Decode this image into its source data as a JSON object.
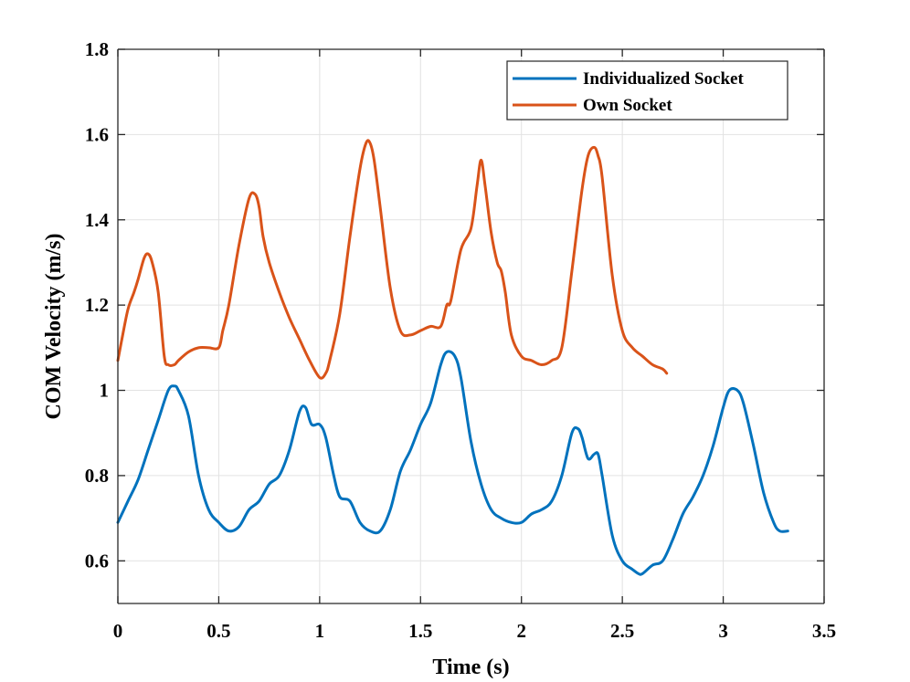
{
  "chart_data": {
    "type": "line",
    "title": "",
    "xlabel": "Time (s)",
    "ylabel": "COM Velocity (m/s)",
    "xlim": [
      0,
      3.5
    ],
    "ylim": [
      0.5,
      1.8
    ],
    "grid": true,
    "legend_position": "top-right",
    "xticks": [
      0,
      0.5,
      1,
      1.5,
      2,
      2.5,
      3,
      3.5
    ],
    "xtick_labels": [
      "0",
      "0.5",
      "1",
      "1.5",
      "2",
      "2.5",
      "3",
      "3.5"
    ],
    "yticks": [
      0.6,
      0.8,
      1.0,
      1.2,
      1.4,
      1.6,
      1.8
    ],
    "ytick_labels": [
      "0.6",
      "0.8",
      "1",
      "1.2",
      "1.4",
      "1.6",
      "1.8"
    ],
    "series": [
      {
        "name": "Individualized Socket",
        "color": "#0072BD",
        "x": [
          0,
          0.05,
          0.1,
          0.15,
          0.2,
          0.25,
          0.28,
          0.3,
          0.35,
          0.4,
          0.45,
          0.5,
          0.55,
          0.6,
          0.65,
          0.7,
          0.75,
          0.8,
          0.85,
          0.9,
          0.93,
          0.96,
          1.0,
          1.03,
          1.07,
          1.1,
          1.15,
          1.2,
          1.25,
          1.3,
          1.35,
          1.4,
          1.45,
          1.5,
          1.55,
          1.6,
          1.63,
          1.67,
          1.7,
          1.75,
          1.8,
          1.85,
          1.9,
          1.95,
          2.0,
          2.05,
          2.1,
          2.15,
          2.2,
          2.25,
          2.28,
          2.3,
          2.33,
          2.36,
          2.38,
          2.4,
          2.45,
          2.5,
          2.55,
          2.58,
          2.6,
          2.65,
          2.7,
          2.75,
          2.8,
          2.85,
          2.9,
          2.95,
          3.0,
          3.03,
          3.07,
          3.1,
          3.15,
          3.2,
          3.25,
          3.28,
          3.32
        ],
        "values": [
          0.69,
          0.74,
          0.79,
          0.86,
          0.93,
          1.0,
          1.01,
          1.0,
          0.94,
          0.8,
          0.72,
          0.69,
          0.67,
          0.68,
          0.72,
          0.74,
          0.78,
          0.8,
          0.86,
          0.95,
          0.96,
          0.92,
          0.92,
          0.89,
          0.8,
          0.75,
          0.74,
          0.69,
          0.67,
          0.67,
          0.72,
          0.81,
          0.86,
          0.92,
          0.97,
          1.06,
          1.09,
          1.08,
          1.03,
          0.88,
          0.78,
          0.72,
          0.7,
          0.69,
          0.69,
          0.71,
          0.72,
          0.74,
          0.8,
          0.9,
          0.91,
          0.89,
          0.84,
          0.85,
          0.85,
          0.8,
          0.66,
          0.6,
          0.58,
          0.57,
          0.57,
          0.59,
          0.6,
          0.65,
          0.71,
          0.75,
          0.8,
          0.87,
          0.96,
          1.0,
          1.0,
          0.97,
          0.87,
          0.76,
          0.69,
          0.67,
          0.67
        ]
      },
      {
        "name": "Own Socket",
        "color": "#D95319",
        "x": [
          0,
          0.02,
          0.05,
          0.08,
          0.1,
          0.13,
          0.15,
          0.17,
          0.2,
          0.23,
          0.25,
          0.28,
          0.3,
          0.35,
          0.4,
          0.45,
          0.5,
          0.52,
          0.55,
          0.6,
          0.65,
          0.68,
          0.7,
          0.72,
          0.75,
          0.8,
          0.85,
          0.9,
          0.95,
          1.0,
          1.03,
          1.05,
          1.1,
          1.15,
          1.2,
          1.23,
          1.25,
          1.27,
          1.3,
          1.35,
          1.4,
          1.45,
          1.5,
          1.55,
          1.6,
          1.63,
          1.65,
          1.7,
          1.75,
          1.78,
          1.8,
          1.82,
          1.85,
          1.88,
          1.9,
          1.92,
          1.95,
          2.0,
          2.05,
          2.1,
          2.15,
          2.2,
          2.25,
          2.3,
          2.33,
          2.36,
          2.38,
          2.4,
          2.45,
          2.5,
          2.55,
          2.6,
          2.65,
          2.7,
          2.72
        ],
        "values": [
          1.07,
          1.12,
          1.19,
          1.23,
          1.26,
          1.31,
          1.32,
          1.3,
          1.23,
          1.08,
          1.06,
          1.06,
          1.07,
          1.09,
          1.1,
          1.1,
          1.1,
          1.14,
          1.2,
          1.34,
          1.45,
          1.46,
          1.43,
          1.36,
          1.3,
          1.23,
          1.17,
          1.12,
          1.07,
          1.03,
          1.04,
          1.07,
          1.18,
          1.36,
          1.52,
          1.58,
          1.58,
          1.54,
          1.43,
          1.24,
          1.14,
          1.13,
          1.14,
          1.15,
          1.15,
          1.2,
          1.21,
          1.33,
          1.38,
          1.48,
          1.54,
          1.48,
          1.37,
          1.3,
          1.28,
          1.23,
          1.13,
          1.08,
          1.07,
          1.06,
          1.07,
          1.1,
          1.28,
          1.47,
          1.55,
          1.57,
          1.55,
          1.5,
          1.27,
          1.14,
          1.1,
          1.08,
          1.06,
          1.05,
          1.04
        ]
      }
    ]
  }
}
